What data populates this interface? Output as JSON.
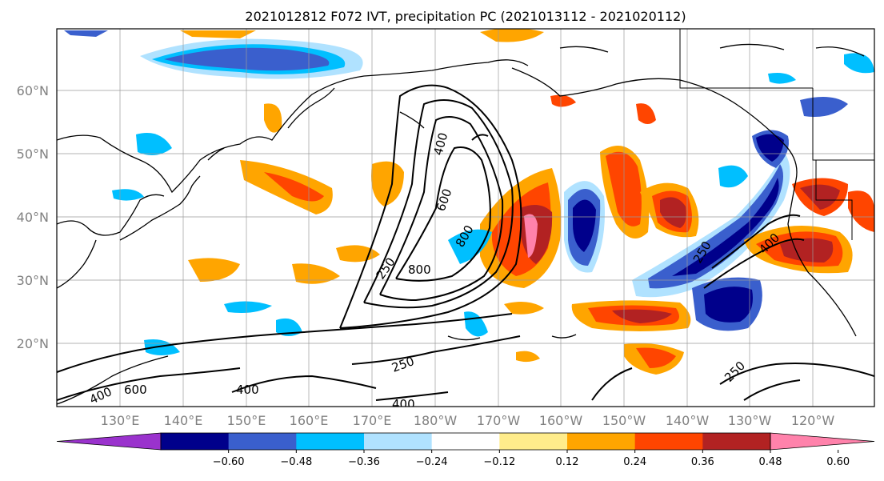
{
  "title": "2021012812 F072 IVT, precipitation PC (2021013112 - 2021020112)",
  "lat_labels": [
    "60°N",
    "50°N",
    "40°N",
    "30°N",
    "20°N"
  ],
  "lon_labels": [
    "130°E",
    "140°E",
    "150°E",
    "160°E",
    "170°E",
    "180°W",
    "170°W",
    "160°W",
    "150°W",
    "140°W",
    "130°W",
    "120°W"
  ],
  "ivt_contour_labels": [
    "400",
    "600",
    "250",
    "800",
    "800",
    "250",
    "400",
    "400",
    "600",
    "250",
    "400",
    "400",
    "250"
  ],
  "colorbar": {
    "tick_labels": [
      "−0.60",
      "−0.48",
      "−0.36",
      "−0.24",
      "−0.12",
      "0.12",
      "0.24",
      "0.36",
      "0.48",
      "0.60"
    ],
    "colors": [
      "#9a32cd",
      "#00008b",
      "#3a5fcd",
      "#00bfff",
      "#b0e2ff",
      "#ffffff",
      "#ffec8b",
      "#ffa500",
      "#ff4500",
      "#b22222",
      "#ff82ab"
    ]
  },
  "colors": {
    "land": "#000000",
    "ivt": "#000000",
    "grid": "#9a9a9a"
  }
}
